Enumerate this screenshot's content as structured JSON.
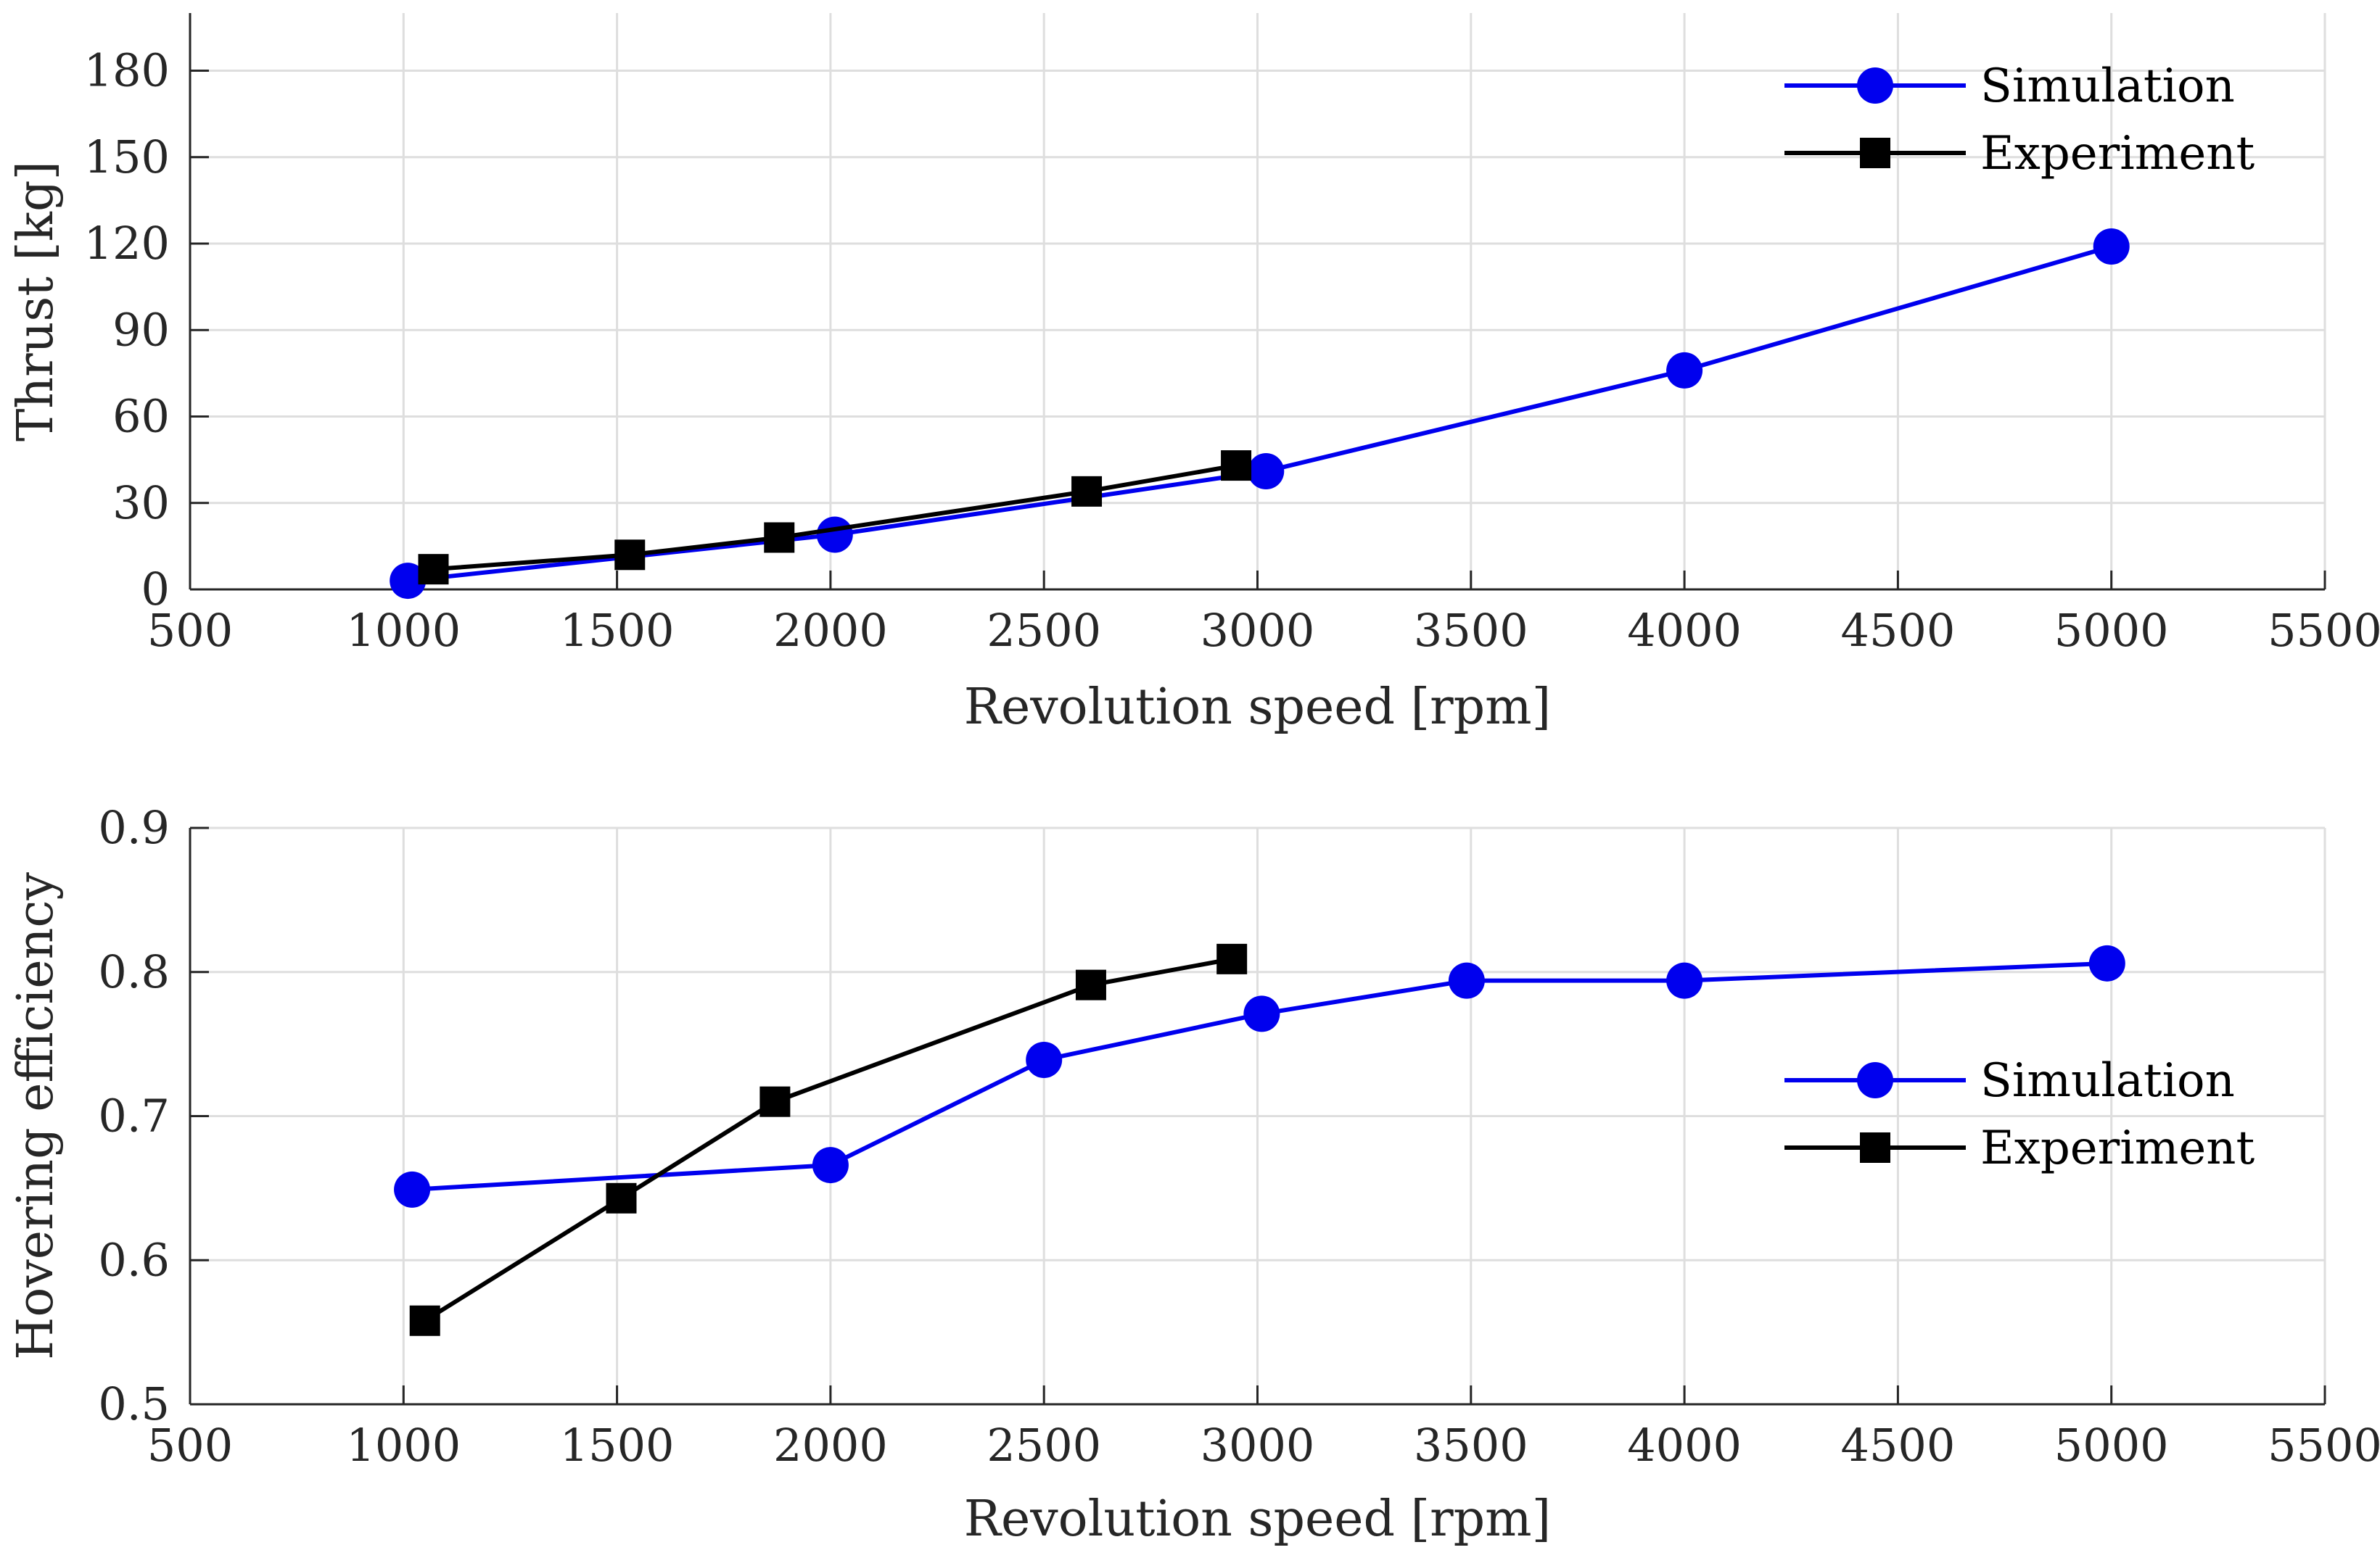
{
  "chart_data": [
    {
      "type": "line",
      "xlabel": "Revolution speed [rpm]",
      "ylabel": "Thrust [kg]",
      "xlim": [
        500,
        5500
      ],
      "ylim": [
        0,
        200
      ],
      "xticks": [
        500,
        1000,
        1500,
        2000,
        2500,
        3000,
        3500,
        4000,
        4500,
        5000,
        5500
      ],
      "yticks": [
        0,
        30,
        60,
        90,
        120,
        150,
        180
      ],
      "grid": true,
      "legend": "top-right",
      "series": [
        {
          "name": "Simulation",
          "color": "#0000ee",
          "marker": "circle",
          "x": [
            1010,
            2010,
            3020,
            4000,
            5000
          ],
          "y": [
            3,
            19,
            41,
            76,
            119
          ]
        },
        {
          "name": "Experiment",
          "color": "#000000",
          "marker": "square",
          "x": [
            1070,
            1530,
            1880,
            2600,
            2950
          ],
          "y": [
            7,
            12,
            18,
            34,
            43
          ]
        }
      ]
    },
    {
      "type": "line",
      "xlabel": "Revolution speed [rpm]",
      "ylabel": "Hovering efficiency",
      "xlim": [
        500,
        5500
      ],
      "ylim": [
        0.5,
        0.9
      ],
      "xticks": [
        500,
        1000,
        1500,
        2000,
        2500,
        3000,
        3500,
        4000,
        4500,
        5000,
        5500
      ],
      "yticks": [
        "0.5",
        "0.6",
        "0.7",
        "0.8",
        "0.9"
      ],
      "grid": true,
      "legend": "right",
      "series": [
        {
          "name": "Simulation",
          "color": "#0000ee",
          "marker": "circle",
          "x": [
            1020,
            2000,
            2500,
            3010,
            3490,
            4000,
            4990
          ],
          "y": [
            0.649,
            0.666,
            0.739,
            0.771,
            0.794,
            0.794,
            0.806
          ]
        },
        {
          "name": "Experiment",
          "color": "#000000",
          "marker": "square",
          "x": [
            1050,
            1510,
            1870,
            2610,
            2940
          ],
          "y": [
            0.558,
            0.643,
            0.71,
            0.791,
            0.809
          ]
        }
      ]
    }
  ]
}
